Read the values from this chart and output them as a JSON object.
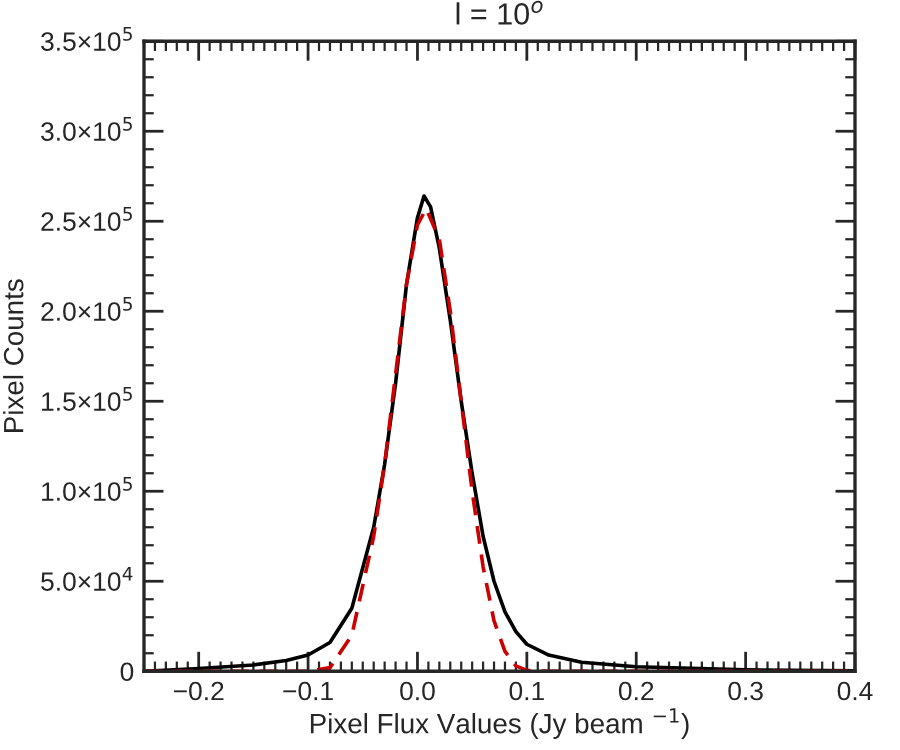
{
  "chart_data": {
    "type": "line",
    "title": "l = 10$^{o}$",
    "xlabel": "Pixel Flux Values (Jy beam $^{−1}$)",
    "ylabel": "Pixel Counts",
    "xlim": [
      -0.25,
      0.4
    ],
    "xticks": [
      {
        "value": -0.2,
        "label": "−0.2"
      },
      {
        "value": -0.1,
        "label": "−0.1"
      },
      {
        "value": 0.0,
        "label": "0.0"
      },
      {
        "value": 0.1,
        "label": "0.1"
      },
      {
        "value": 0.2,
        "label": "0.2"
      },
      {
        "value": 0.3,
        "label": "0.3"
      },
      {
        "value": 0.4,
        "label": "0.4"
      }
    ],
    "ylim": [
      0,
      350000
    ],
    "yticks": [
      0,
      {
        "value": 50000,
        "label": "5.0×10$^{4}$"
      },
      {
        "value": 100000,
        "label": "1.0×10$^{5}$"
      },
      {
        "value": 150000,
        "label": "1.5×10$^{5}$"
      },
      {
        "value": 200000,
        "label": "2.0×10$^{5}$"
      },
      {
        "value": 250000,
        "label": "2.5×10$^{5}$"
      },
      {
        "value": 300000,
        "label": "3.0×10$^{5}$"
      },
      {
        "value": 350000,
        "label": "3.5×10$^{5}$"
      }
    ],
    "grid": false,
    "marker": "none",
    "series": [
      {
        "color": "#000000",
        "line_style": "solid",
        "x": [
          -0.25,
          -0.2,
          -0.15,
          -0.12,
          -0.1,
          -0.08,
          -0.06,
          -0.04,
          -0.03,
          -0.02,
          -0.01,
          0.0,
          0.006,
          0.012,
          0.02,
          0.03,
          0.04,
          0.05,
          0.06,
          0.07,
          0.08,
          0.09,
          0.1,
          0.12,
          0.15,
          0.2,
          0.3,
          0.4
        ],
        "values": [
          0,
          1500,
          3500,
          6000,
          9000,
          16000,
          35000,
          80000,
          115000,
          160000,
          215000,
          252000,
          264000,
          258000,
          235000,
          195000,
          150000,
          110000,
          75000,
          50000,
          33000,
          22000,
          15000,
          9000,
          5000,
          2500,
          800,
          200
        ]
      },
      {
        "color": "#cc0000",
        "line_style": "dashed",
        "x": [
          -0.25,
          -0.1,
          -0.08,
          -0.06,
          -0.04,
          -0.03,
          -0.02,
          -0.01,
          0.0,
          0.008,
          0.02,
          0.03,
          0.04,
          0.05,
          0.06,
          0.07,
          0.08,
          0.09,
          0.1,
          0.12,
          0.4
        ],
        "values": [
          0,
          0,
          2000,
          20000,
          75000,
          115000,
          165000,
          215000,
          248000,
          257000,
          240000,
          200000,
          150000,
          100000,
          58000,
          28000,
          11000,
          3000,
          500,
          0,
          0
        ]
      }
    ]
  }
}
